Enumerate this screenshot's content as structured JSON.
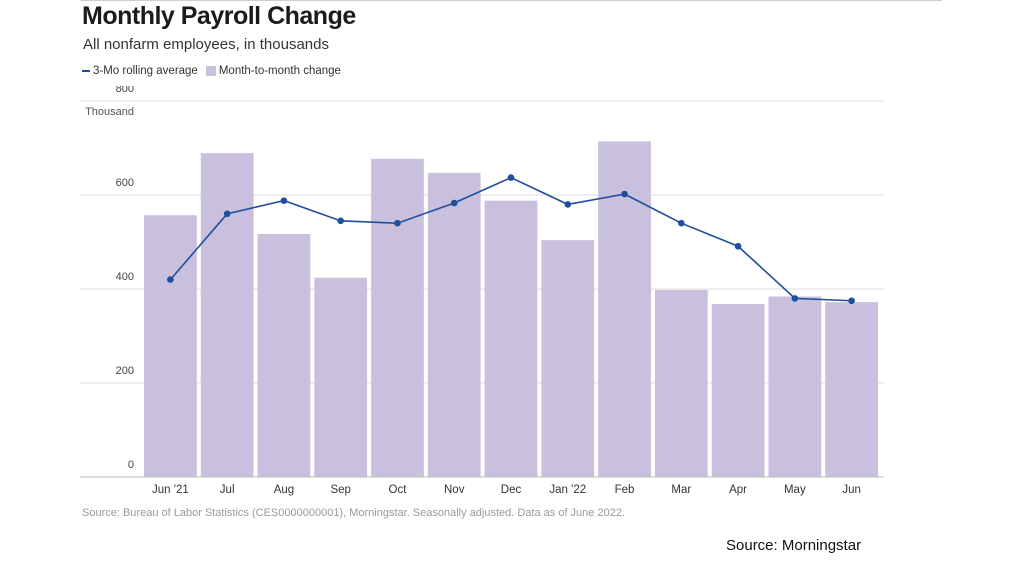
{
  "title": "Monthly Payroll Change",
  "subtitle": "All nonfarm employees, in thousands",
  "legend": {
    "line_label": "3-Mo rolling average",
    "bar_label": "Month-to-month change"
  },
  "footer_note": "Source: Bureau of Labor Statistics (CES0000000001), Morningstar. Seasonally adjusted. Data as of June 2022.",
  "source_label": "Source: Morningstar",
  "colors": {
    "bar": "#c8c0dc",
    "line": "#1f4e9d",
    "grid": "#dddddd"
  },
  "chart_data": {
    "type": "bar",
    "title": "Monthly Payroll Change",
    "ylabel": "Thousand",
    "ylim": [
      0,
      800
    ],
    "yticks": [
      0,
      200,
      400,
      600,
      800
    ],
    "grid": true,
    "categories": [
      "Jun '21",
      "Jul",
      "Aug",
      "Sep",
      "Oct",
      "Nov",
      "Dec",
      "Jan '22",
      "Feb",
      "Mar",
      "Apr",
      "May",
      "Jun"
    ],
    "series": [
      {
        "name": "Month-to-month change",
        "type": "bar",
        "values": [
          557,
          689,
          517,
          424,
          677,
          647,
          588,
          504,
          714,
          398,
          368,
          384,
          372
        ]
      },
      {
        "name": "3-Mo rolling average",
        "type": "line",
        "values": [
          420,
          560,
          588,
          545,
          540,
          583,
          637,
          580,
          602,
          540,
          491,
          380,
          375
        ]
      }
    ]
  }
}
